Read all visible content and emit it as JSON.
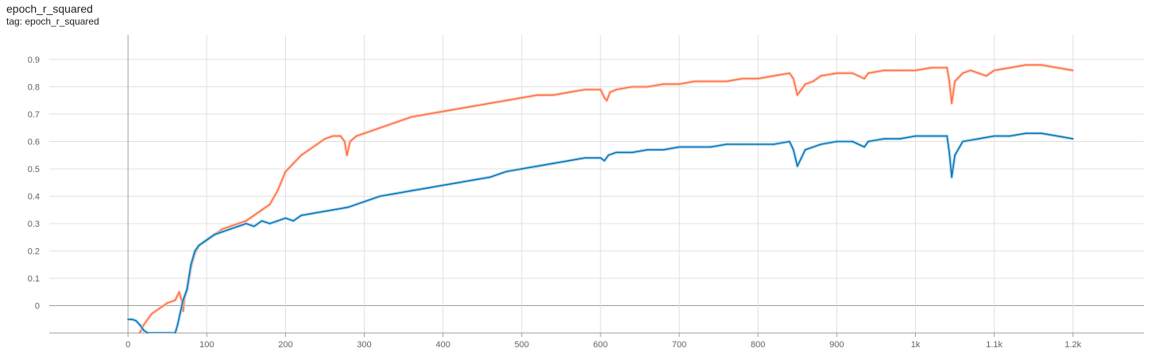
{
  "header": {
    "title": "epoch_r_squared",
    "tag": "tag: epoch_r_squared"
  },
  "chart_data": {
    "type": "line",
    "title": "epoch_r_squared",
    "subtitle": "tag: epoch_r_squared",
    "xlabel": "",
    "ylabel": "",
    "xlim": [
      -100,
      1290
    ],
    "ylim": [
      -0.1,
      0.99
    ],
    "grid": true,
    "x_ticks": [
      0,
      100,
      200,
      300,
      400,
      500,
      600,
      700,
      800,
      900,
      1000,
      1100,
      1200
    ],
    "x_tick_labels": [
      "0",
      "100",
      "200",
      "300",
      "400",
      "500",
      "600",
      "700",
      "800",
      "900",
      "1k",
      "1.1k",
      "1.2k"
    ],
    "y_ticks": [
      0,
      0.1,
      0.2,
      0.3,
      0.4,
      0.5,
      0.6,
      0.7,
      0.8,
      0.9
    ],
    "y_tick_labels": [
      "0",
      "0.1",
      "0.2",
      "0.3",
      "0.4",
      "0.5",
      "0.6",
      "0.7",
      "0.8",
      "0.9"
    ],
    "series": [
      {
        "name": "orange",
        "color": "#ff7043",
        "raw_color": "#ffccbc",
        "points": [
          [
            15,
            -0.1
          ],
          [
            20,
            -0.07
          ],
          [
            30,
            -0.03
          ],
          [
            40,
            -0.01
          ],
          [
            50,
            0.01
          ],
          [
            60,
            0.02
          ],
          [
            65,
            0.05
          ],
          [
            68,
            0.02
          ],
          [
            70,
            -0.02
          ],
          [
            72,
            0.03
          ],
          [
            75,
            0.06
          ],
          [
            80,
            0.14
          ],
          [
            85,
            0.19
          ],
          [
            90,
            0.22
          ],
          [
            100,
            0.24
          ],
          [
            110,
            0.26
          ],
          [
            120,
            0.28
          ],
          [
            130,
            0.29
          ],
          [
            140,
            0.3
          ],
          [
            150,
            0.31
          ],
          [
            160,
            0.33
          ],
          [
            170,
            0.35
          ],
          [
            180,
            0.37
          ],
          [
            190,
            0.42
          ],
          [
            200,
            0.49
          ],
          [
            210,
            0.52
          ],
          [
            220,
            0.55
          ],
          [
            230,
            0.57
          ],
          [
            240,
            0.59
          ],
          [
            250,
            0.61
          ],
          [
            260,
            0.62
          ],
          [
            270,
            0.62
          ],
          [
            275,
            0.6
          ],
          [
            278,
            0.55
          ],
          [
            282,
            0.6
          ],
          [
            290,
            0.62
          ],
          [
            300,
            0.63
          ],
          [
            320,
            0.65
          ],
          [
            340,
            0.67
          ],
          [
            360,
            0.69
          ],
          [
            380,
            0.7
          ],
          [
            400,
            0.71
          ],
          [
            420,
            0.72
          ],
          [
            440,
            0.73
          ],
          [
            460,
            0.74
          ],
          [
            480,
            0.75
          ],
          [
            500,
            0.76
          ],
          [
            520,
            0.77
          ],
          [
            540,
            0.77
          ],
          [
            560,
            0.78
          ],
          [
            580,
            0.79
          ],
          [
            600,
            0.79
          ],
          [
            605,
            0.76
          ],
          [
            608,
            0.75
          ],
          [
            612,
            0.78
          ],
          [
            620,
            0.79
          ],
          [
            640,
            0.8
          ],
          [
            660,
            0.8
          ],
          [
            680,
            0.81
          ],
          [
            700,
            0.81
          ],
          [
            720,
            0.82
          ],
          [
            740,
            0.82
          ],
          [
            760,
            0.82
          ],
          [
            780,
            0.83
          ],
          [
            800,
            0.83
          ],
          [
            820,
            0.84
          ],
          [
            840,
            0.85
          ],
          [
            845,
            0.83
          ],
          [
            850,
            0.77
          ],
          [
            855,
            0.79
          ],
          [
            860,
            0.81
          ],
          [
            870,
            0.82
          ],
          [
            880,
            0.84
          ],
          [
            900,
            0.85
          ],
          [
            920,
            0.85
          ],
          [
            935,
            0.83
          ],
          [
            940,
            0.85
          ],
          [
            960,
            0.86
          ],
          [
            980,
            0.86
          ],
          [
            1000,
            0.86
          ],
          [
            1020,
            0.87
          ],
          [
            1040,
            0.87
          ],
          [
            1043,
            0.82
          ],
          [
            1046,
            0.74
          ],
          [
            1050,
            0.82
          ],
          [
            1060,
            0.85
          ],
          [
            1070,
            0.86
          ],
          [
            1080,
            0.85
          ],
          [
            1090,
            0.84
          ],
          [
            1100,
            0.86
          ],
          [
            1120,
            0.87
          ],
          [
            1140,
            0.88
          ],
          [
            1160,
            0.88
          ],
          [
            1180,
            0.87
          ],
          [
            1200,
            0.86
          ]
        ]
      },
      {
        "name": "blue",
        "color": "#0077bb",
        "raw_color": "#b3d4ea",
        "points": [
          [
            0,
            -0.05
          ],
          [
            5,
            -0.05
          ],
          [
            10,
            -0.055
          ],
          [
            15,
            -0.07
          ],
          [
            20,
            -0.09
          ],
          [
            25,
            -0.1
          ],
          [
            60,
            -0.1
          ],
          [
            63,
            -0.07
          ],
          [
            66,
            -0.03
          ],
          [
            70,
            0.02
          ],
          [
            75,
            0.06
          ],
          [
            80,
            0.15
          ],
          [
            85,
            0.2
          ],
          [
            90,
            0.22
          ],
          [
            100,
            0.24
          ],
          [
            110,
            0.26
          ],
          [
            120,
            0.27
          ],
          [
            130,
            0.28
          ],
          [
            140,
            0.29
          ],
          [
            150,
            0.3
          ],
          [
            160,
            0.29
          ],
          [
            170,
            0.31
          ],
          [
            180,
            0.3
          ],
          [
            190,
            0.31
          ],
          [
            200,
            0.32
          ],
          [
            210,
            0.31
          ],
          [
            220,
            0.33
          ],
          [
            240,
            0.34
          ],
          [
            260,
            0.35
          ],
          [
            280,
            0.36
          ],
          [
            300,
            0.38
          ],
          [
            320,
            0.4
          ],
          [
            340,
            0.41
          ],
          [
            360,
            0.42
          ],
          [
            380,
            0.43
          ],
          [
            400,
            0.44
          ],
          [
            420,
            0.45
          ],
          [
            440,
            0.46
          ],
          [
            460,
            0.47
          ],
          [
            480,
            0.49
          ],
          [
            500,
            0.5
          ],
          [
            520,
            0.51
          ],
          [
            540,
            0.52
          ],
          [
            560,
            0.53
          ],
          [
            580,
            0.54
          ],
          [
            600,
            0.54
          ],
          [
            605,
            0.53
          ],
          [
            610,
            0.55
          ],
          [
            620,
            0.56
          ],
          [
            640,
            0.56
          ],
          [
            660,
            0.57
          ],
          [
            680,
            0.57
          ],
          [
            700,
            0.58
          ],
          [
            720,
            0.58
          ],
          [
            740,
            0.58
          ],
          [
            760,
            0.59
          ],
          [
            780,
            0.59
          ],
          [
            800,
            0.59
          ],
          [
            820,
            0.59
          ],
          [
            840,
            0.6
          ],
          [
            845,
            0.57
          ],
          [
            850,
            0.51
          ],
          [
            855,
            0.54
          ],
          [
            860,
            0.57
          ],
          [
            880,
            0.59
          ],
          [
            900,
            0.6
          ],
          [
            920,
            0.6
          ],
          [
            935,
            0.58
          ],
          [
            940,
            0.6
          ],
          [
            960,
            0.61
          ],
          [
            980,
            0.61
          ],
          [
            1000,
            0.62
          ],
          [
            1020,
            0.62
          ],
          [
            1040,
            0.62
          ],
          [
            1043,
            0.56
          ],
          [
            1046,
            0.47
          ],
          [
            1050,
            0.55
          ],
          [
            1060,
            0.6
          ],
          [
            1080,
            0.61
          ],
          [
            1100,
            0.62
          ],
          [
            1120,
            0.62
          ],
          [
            1140,
            0.63
          ],
          [
            1160,
            0.63
          ],
          [
            1180,
            0.62
          ],
          [
            1200,
            0.61
          ]
        ]
      }
    ]
  }
}
